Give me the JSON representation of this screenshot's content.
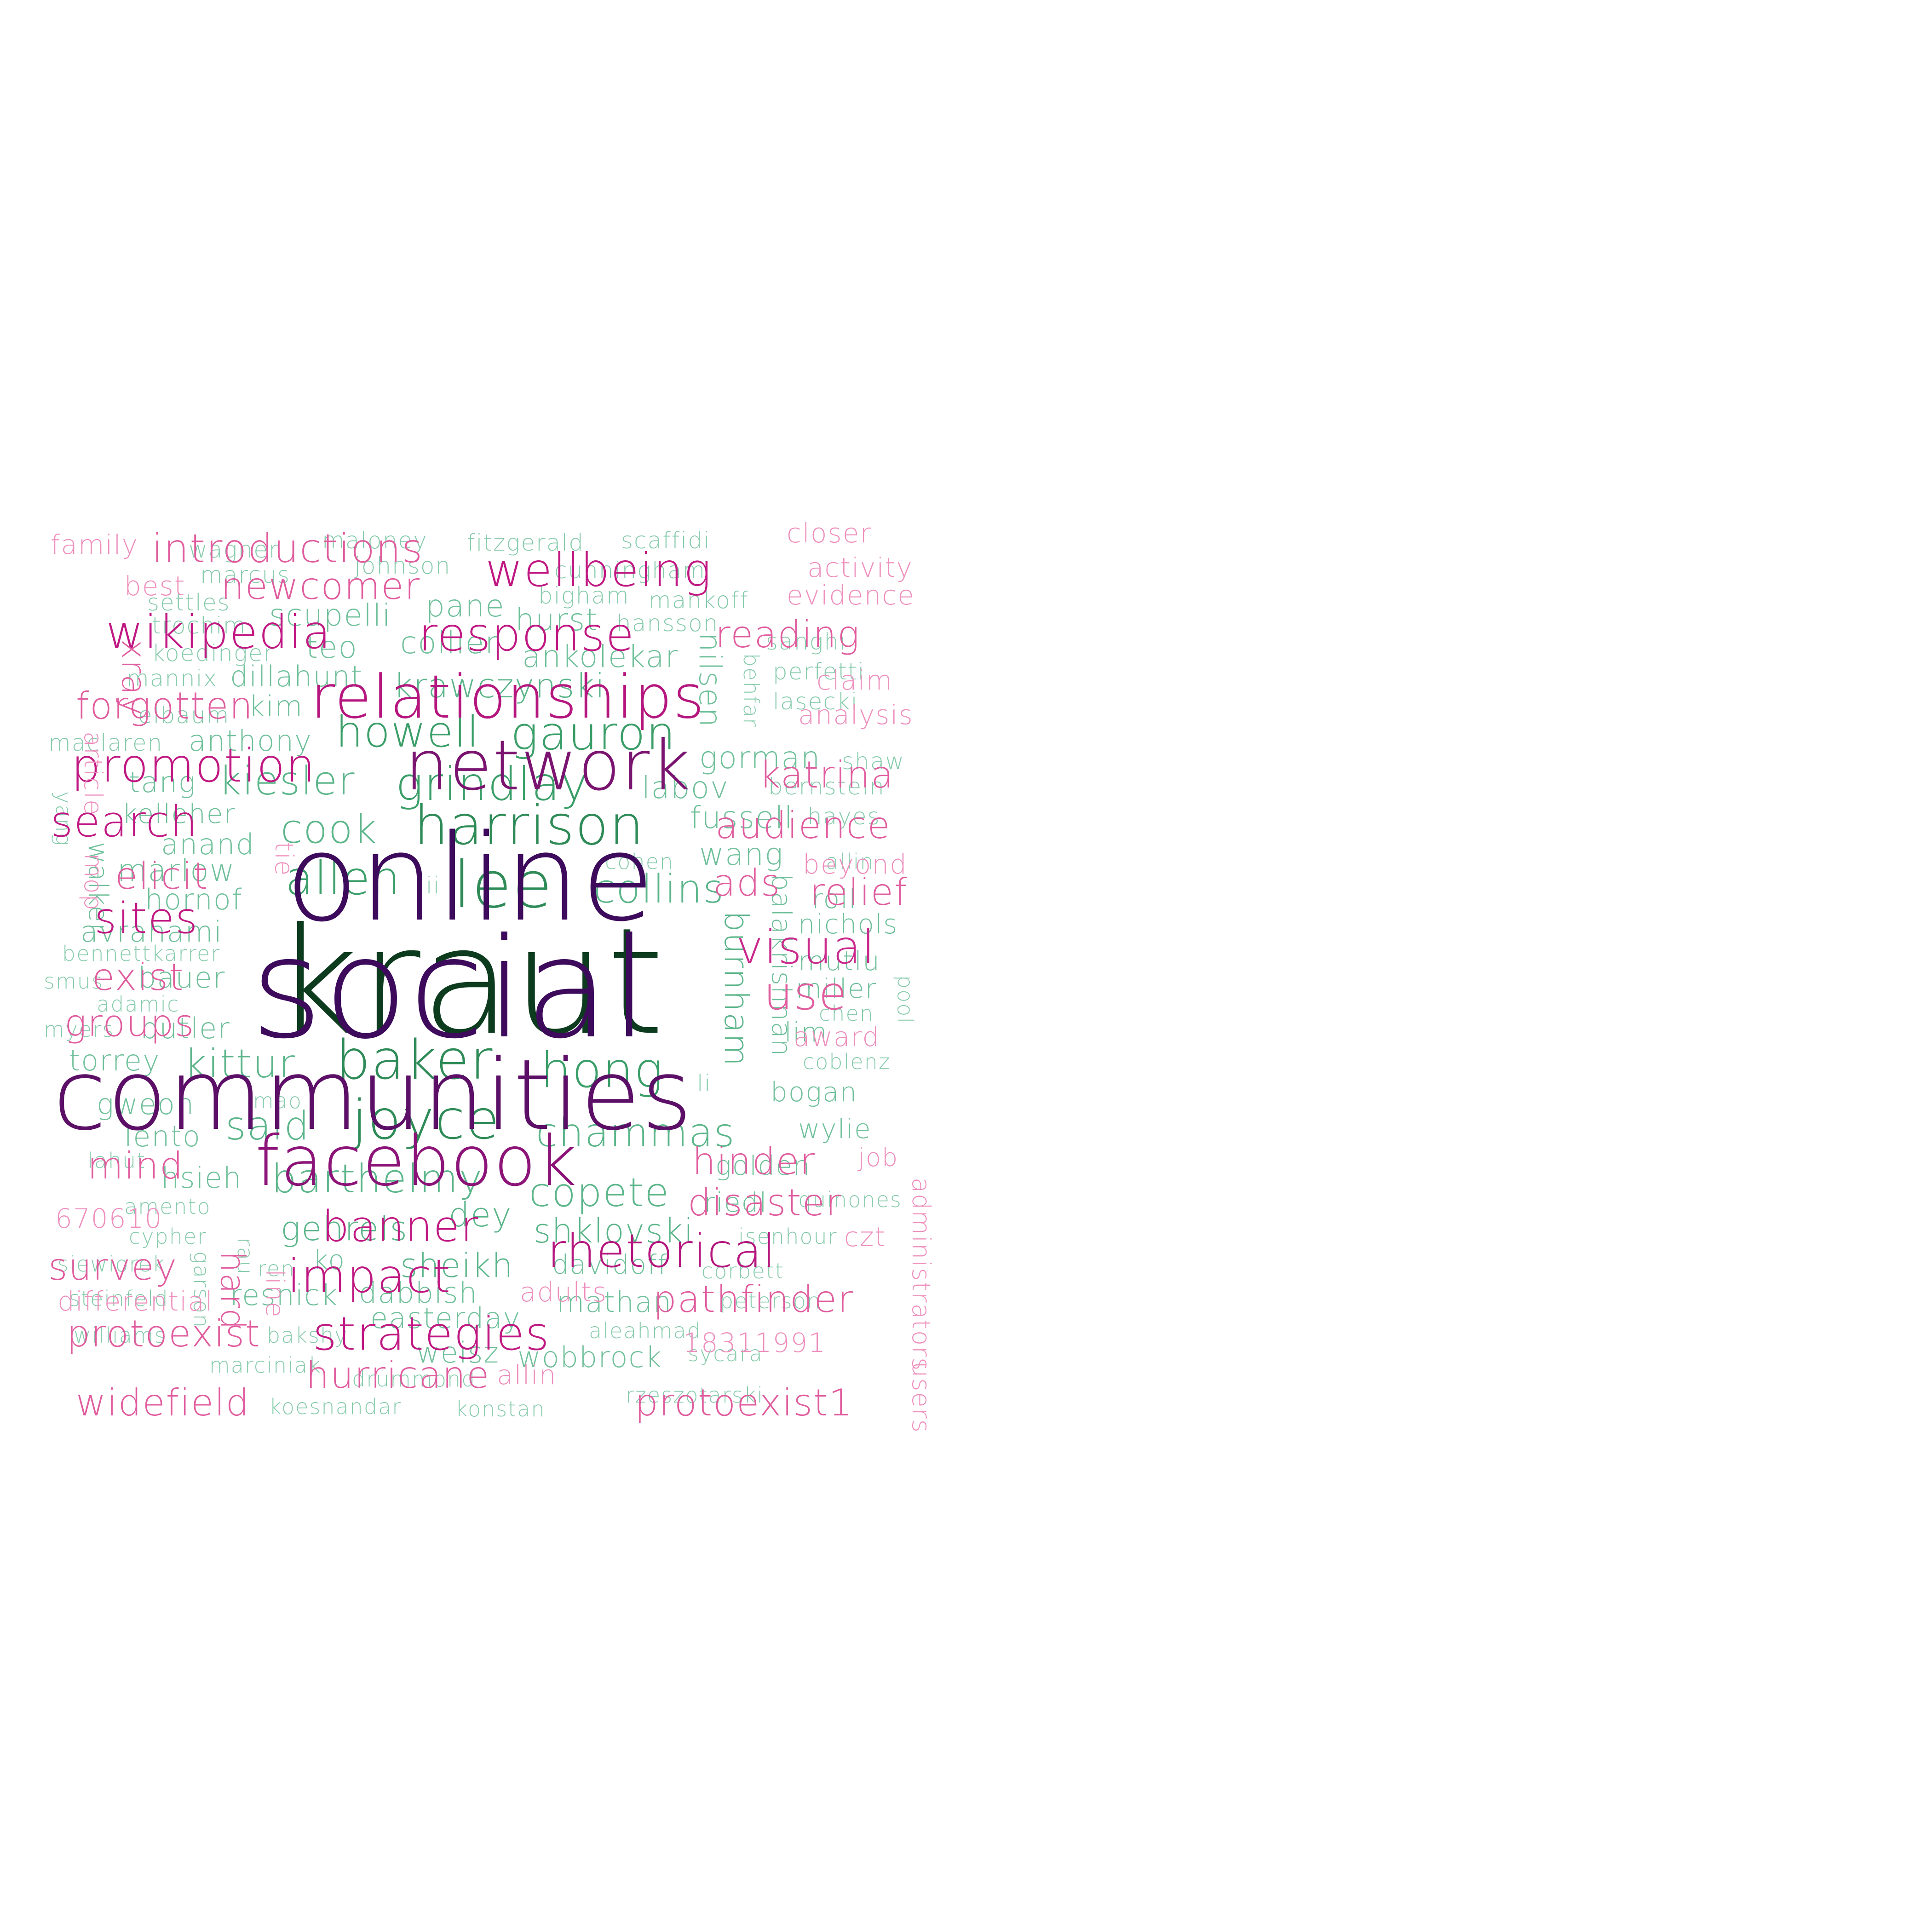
{
  "clouds": [
    {
      "id": "cloud-left",
      "words": [
        {
          "text": "kraut",
          "color": "#0d3b1e"
        },
        {
          "text": "lee",
          "color": "#2e8b57"
        },
        {
          "text": "harrison",
          "color": "#2e8b57"
        },
        {
          "text": "baker",
          "color": "#2e8b57"
        },
        {
          "text": "joyce",
          "color": "#2e8b57"
        },
        {
          "text": "hong",
          "color": "#3a9e68"
        },
        {
          "text": "grindlay",
          "color": "#3a9e68"
        },
        {
          "text": "gauron",
          "color": "#3a9e68"
        },
        {
          "text": "howell",
          "color": "#3a9e68"
        },
        {
          "text": "allen",
          "color": "#3a9e68"
        },
        {
          "text": "cook",
          "color": "#5bb58a"
        },
        {
          "text": "collins",
          "color": "#5bb58a"
        },
        {
          "text": "kiesler",
          "color": "#5bb58a"
        },
        {
          "text": "kittur",
          "color": "#5bb58a"
        },
        {
          "text": "said",
          "color": "#5bb58a"
        },
        {
          "text": "barthelmy",
          "color": "#5bb58a"
        },
        {
          "text": "copete",
          "color": "#5bb58a"
        },
        {
          "text": "chammas",
          "color": "#5bb58a"
        },
        {
          "text": "krawczynski",
          "color": "#5bb58a"
        },
        {
          "text": "burnham",
          "color": "#5bb58a"
        },
        {
          "text": "shklovski",
          "color": "#5bb58a"
        },
        {
          "text": "sheikh",
          "color": "#5bb58a"
        },
        {
          "text": "gehrels",
          "color": "#5bb58a"
        },
        {
          "text": "dey",
          "color": "#5bb58a"
        },
        {
          "text": "scupelli",
          "color": "#6fc09a"
        },
        {
          "text": "collier",
          "color": "#6fc09a"
        },
        {
          "text": "pane",
          "color": "#6fc09a"
        },
        {
          "text": "hurst",
          "color": "#6fc09a"
        },
        {
          "text": "teo",
          "color": "#6fc09a"
        },
        {
          "text": "ankolekar",
          "color": "#6fc09a"
        },
        {
          "text": "nilsen",
          "color": "#6fc09a"
        },
        {
          "text": "labov",
          "color": "#6fc09a"
        },
        {
          "text": "gorman",
          "color": "#6fc09a"
        },
        {
          "text": "fussell",
          "color": "#6fc09a"
        },
        {
          "text": "wang",
          "color": "#6fc09a"
        },
        {
          "text": "balakrishnan",
          "color": "#6fc09a"
        },
        {
          "text": "dillahunt",
          "color": "#6fc09a"
        },
        {
          "text": "anthony",
          "color": "#6fc09a"
        },
        {
          "text": "kim",
          "color": "#6fc09a"
        },
        {
          "text": "tang",
          "color": "#6fc09a"
        },
        {
          "text": "kelleher",
          "color": "#6fc09a"
        },
        {
          "text": "anand",
          "color": "#6fc09a"
        },
        {
          "text": "marlow",
          "color": "#6fc09a"
        },
        {
          "text": "hornof",
          "color": "#6fc09a"
        },
        {
          "text": "avrahami",
          "color": "#6fc09a"
        },
        {
          "text": "bauer",
          "color": "#6fc09a"
        },
        {
          "text": "butler",
          "color": "#6fc09a"
        },
        {
          "text": "torrey",
          "color": "#6fc09a"
        },
        {
          "text": "gweon",
          "color": "#6fc09a"
        },
        {
          "text": "lento",
          "color": "#6fc09a"
        },
        {
          "text": "hsieh",
          "color": "#6fc09a"
        },
        {
          "text": "resnick",
          "color": "#6fc09a"
        },
        {
          "text": "dabbish",
          "color": "#6fc09a"
        },
        {
          "text": "easterday",
          "color": "#6fc09a"
        },
        {
          "text": "weisz",
          "color": "#6fc09a"
        },
        {
          "text": "wobbrock",
          "color": "#6fc09a"
        },
        {
          "text": "mathan",
          "color": "#6fc09a"
        },
        {
          "text": "davidoff",
          "color": "#6fc09a"
        },
        {
          "text": "riedl",
          "color": "#6fc09a"
        },
        {
          "text": "golden",
          "color": "#6fc09a"
        },
        {
          "text": "bogan",
          "color": "#6fc09a"
        },
        {
          "text": "wylie",
          "color": "#6fc09a"
        },
        {
          "text": "nichols",
          "color": "#6fc09a"
        },
        {
          "text": "mutlu",
          "color": "#6fc09a"
        },
        {
          "text": "miller",
          "color": "#6fc09a"
        },
        {
          "text": "roll",
          "color": "#6fc09a"
        },
        {
          "text": "lim",
          "color": "#6fc09a"
        },
        {
          "text": "ko",
          "color": "#6fc09a"
        },
        {
          "text": "walker",
          "color": "#6fc09a"
        },
        {
          "text": "wagner",
          "color": "#86cbab"
        },
        {
          "text": "marcus",
          "color": "#86cbab"
        },
        {
          "text": "maloney",
          "color": "#86cbab"
        },
        {
          "text": "johnson",
          "color": "#86cbab"
        },
        {
          "text": "fitzgerald",
          "color": "#86cbab"
        },
        {
          "text": "scaffidi",
          "color": "#86cbab"
        },
        {
          "text": "cunningham",
          "color": "#86cbab"
        },
        {
          "text": "bigham",
          "color": "#86cbab"
        },
        {
          "text": "mankoff",
          "color": "#86cbab"
        },
        {
          "text": "hansson",
          "color": "#86cbab"
        },
        {
          "text": "settles",
          "color": "#86cbab"
        },
        {
          "text": "trochim",
          "color": "#86cbab"
        },
        {
          "text": "koedinger",
          "color": "#86cbab"
        },
        {
          "text": "mannix",
          "color": "#86cbab"
        },
        {
          "text": "elbaum",
          "color": "#86cbab"
        },
        {
          "text": "maclaren",
          "color": "#86cbab"
        },
        {
          "text": "sanghi",
          "color": "#86cbab"
        },
        {
          "text": "perfetti",
          "color": "#86cbab"
        },
        {
          "text": "lasecki",
          "color": "#86cbab"
        },
        {
          "text": "behfar",
          "color": "#86cbab"
        },
        {
          "text": "shaw",
          "color": "#86cbab"
        },
        {
          "text": "bernstein",
          "color": "#86cbab"
        },
        {
          "text": "hayes",
          "color": "#86cbab"
        },
        {
          "text": "allin",
          "color": "#86cbab"
        },
        {
          "text": "cohen",
          "color": "#86cbab"
        },
        {
          "text": "iii",
          "color": "#86cbab"
        },
        {
          "text": "yang",
          "color": "#86cbab"
        },
        {
          "text": "bennettkarrer",
          "color": "#86cbab"
        },
        {
          "text": "smus",
          "color": "#86cbab"
        },
        {
          "text": "adamic",
          "color": "#86cbab"
        },
        {
          "text": "myers",
          "color": "#86cbab"
        },
        {
          "text": "chen",
          "color": "#86cbab"
        },
        {
          "text": "pool",
          "color": "#86cbab"
        },
        {
          "text": "coblenz",
          "color": "#86cbab"
        },
        {
          "text": "li",
          "color": "#86cbab"
        },
        {
          "text": "mao",
          "color": "#86cbab"
        },
        {
          "text": "lahut",
          "color": "#86cbab"
        },
        {
          "text": "amento",
          "color": "#86cbab"
        },
        {
          "text": "rau",
          "color": "#86cbab"
        },
        {
          "text": "cypher",
          "color": "#86cbab"
        },
        {
          "text": "quinones",
          "color": "#86cbab"
        },
        {
          "text": "isenhour",
          "color": "#86cbab"
        },
        {
          "text": "siewiorek",
          "color": "#86cbab"
        },
        {
          "text": "ren",
          "color": "#86cbab"
        },
        {
          "text": "corbett",
          "color": "#86cbab"
        },
        {
          "text": "garson",
          "color": "#86cbab"
        },
        {
          "text": "steinfeld",
          "color": "#86cbab"
        },
        {
          "text": "peterson",
          "color": "#86cbab"
        },
        {
          "text": "williams",
          "color": "#86cbab"
        },
        {
          "text": "bakshy",
          "color": "#86cbab"
        },
        {
          "text": "aleahmad",
          "color": "#86cbab"
        },
        {
          "text": "sycara",
          "color": "#86cbab"
        },
        {
          "text": "marciniak",
          "color": "#86cbab"
        },
        {
          "text": "drummond",
          "color": "#86cbab"
        },
        {
          "text": "koesnandar",
          "color": "#86cbab"
        },
        {
          "text": "konstan",
          "color": "#86cbab"
        },
        {
          "text": "rzeszotarski",
          "color": "#86cbab"
        }
      ]
    },
    {
      "id": "cloud-right",
      "words": [
        {
          "text": "social",
          "color": "#3d0a5c"
        },
        {
          "text": "online",
          "color": "#3d0a5c"
        },
        {
          "text": "communities",
          "color": "#5c0f66"
        },
        {
          "text": "network",
          "color": "#7a1470"
        },
        {
          "text": "facebook",
          "color": "#8c1478"
        },
        {
          "text": "relationships",
          "color": "#b5167e"
        },
        {
          "text": "promotion",
          "color": "#c01882"
        },
        {
          "text": "wikipedia",
          "color": "#c01882"
        },
        {
          "text": "response",
          "color": "#c01882"
        },
        {
          "text": "wellbeing",
          "color": "#c01882"
        },
        {
          "text": "rhetorical",
          "color": "#b5167e"
        },
        {
          "text": "impact",
          "color": "#c01882"
        },
        {
          "text": "strategies",
          "color": "#c01882"
        },
        {
          "text": "banner",
          "color": "#c01882"
        },
        {
          "text": "search",
          "color": "#c01882"
        },
        {
          "text": "sites",
          "color": "#c01882"
        },
        {
          "text": "visual",
          "color": "#c92a8c"
        },
        {
          "text": "introductions",
          "color": "#e05c9e"
        },
        {
          "text": "newcomer",
          "color": "#e05c9e"
        },
        {
          "text": "forgotten",
          "color": "#e05c9e"
        },
        {
          "text": "katrina",
          "color": "#e05c9e"
        },
        {
          "text": "audience",
          "color": "#e05c9e"
        },
        {
          "text": "reading",
          "color": "#e05c9e"
        },
        {
          "text": "elicit",
          "color": "#e05c9e"
        },
        {
          "text": "exist",
          "color": "#e05c9e"
        },
        {
          "text": "groups",
          "color": "#e05c9e"
        },
        {
          "text": "ads",
          "color": "#e05c9e"
        },
        {
          "text": "relief",
          "color": "#e05c9e"
        },
        {
          "text": "use",
          "color": "#e05c9e"
        },
        {
          "text": "mind",
          "color": "#e05c9e"
        },
        {
          "text": "hard",
          "color": "#e05c9e"
        },
        {
          "text": "survey",
          "color": "#e05c9e"
        },
        {
          "text": "hinder",
          "color": "#e05c9e"
        },
        {
          "text": "disaster",
          "color": "#e05c9e"
        },
        {
          "text": "pathfinder",
          "color": "#e05c9e"
        },
        {
          "text": "protoexist",
          "color": "#e05c9e"
        },
        {
          "text": "hurricane",
          "color": "#e05c9e"
        },
        {
          "text": "widefield",
          "color": "#e05c9e"
        },
        {
          "text": "protoexist1",
          "color": "#e05c9e"
        },
        {
          "text": "xray",
          "color": "#e05c9e"
        },
        {
          "text": "family",
          "color": "#ee8fbd"
        },
        {
          "text": "best",
          "color": "#ee8fbd"
        },
        {
          "text": "closer",
          "color": "#ee8fbd"
        },
        {
          "text": "activity",
          "color": "#ee8fbd"
        },
        {
          "text": "evidence",
          "color": "#ee8fbd"
        },
        {
          "text": "claim",
          "color": "#ee8fbd"
        },
        {
          "text": "analysis",
          "color": "#ee8fbd"
        },
        {
          "text": "beyond",
          "color": "#ee8fbd"
        },
        {
          "text": "article",
          "color": "#ee8fbd"
        },
        {
          "text": "mop",
          "color": "#ee8fbd"
        },
        {
          "text": "tie",
          "color": "#ee8fbd"
        },
        {
          "text": "award",
          "color": "#ee8fbd"
        },
        {
          "text": "administrators",
          "color": "#ee8fbd"
        },
        {
          "text": "job",
          "color": "#ee8fbd"
        },
        {
          "text": "czt",
          "color": "#ee8fbd"
        },
        {
          "text": "670610",
          "color": "#ee8fbd"
        },
        {
          "text": "differential",
          "color": "#ee8fbd"
        },
        {
          "text": "line",
          "color": "#ee8fbd"
        },
        {
          "text": "adults",
          "color": "#ee8fbd"
        },
        {
          "text": "18311991",
          "color": "#ee8fbd"
        },
        {
          "text": "allin",
          "color": "#ee8fbd"
        },
        {
          "text": "users",
          "color": "#ee8fbd"
        }
      ]
    }
  ]
}
